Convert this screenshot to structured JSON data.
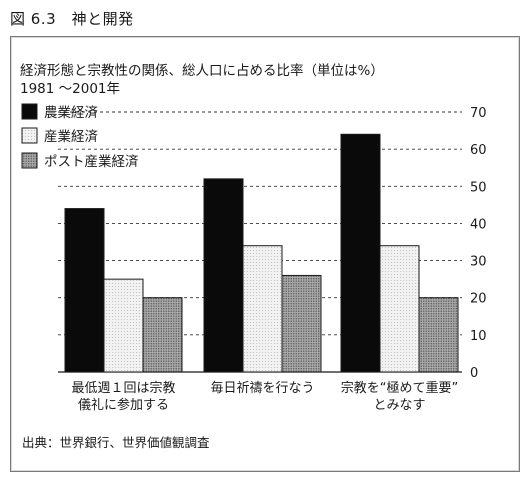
{
  "figure": {
    "label": "図 6.3　神と開発",
    "source": "出典：世界銀行、世界価値観調査"
  },
  "chart_data": {
    "type": "bar",
    "title": "経済形態と宗教性の関係、総人口に占める比率（単位は%）",
    "subtitle": "1981 ～2001年",
    "categories": [
      [
        "最低週１回は宗教",
        "儀礼に参加する"
      ],
      [
        "毎日祈禱を行なう"
      ],
      [
        "宗教を“極めて重要”",
        "とみなす"
      ]
    ],
    "series": [
      {
        "name": "農業経済",
        "values": [
          44,
          52,
          64
        ],
        "color": "#0a0a0a"
      },
      {
        "name": "産業経済",
        "values": [
          25,
          34,
          34
        ],
        "color": "#ececec"
      },
      {
        "name": "ポスト産業経済",
        "values": [
          20,
          26,
          20
        ],
        "color": "#9a9a9a"
      }
    ],
    "yticks": [
      0,
      10,
      20,
      30,
      40,
      50,
      60,
      70
    ],
    "ylim": [
      0,
      70
    ],
    "axis_position": "right",
    "grid": "dashed",
    "legend_placement": "top-left"
  }
}
